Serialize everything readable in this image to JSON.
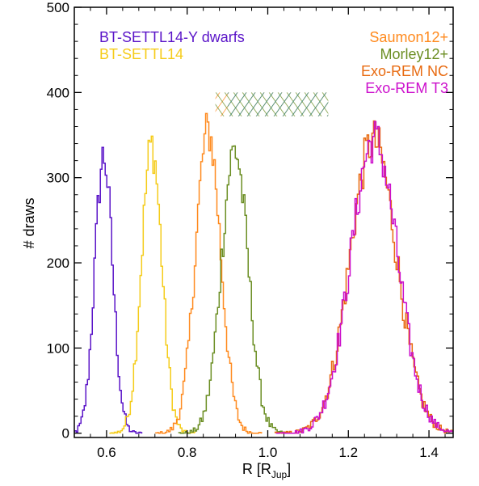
{
  "chart_data": {
    "type": "line",
    "title": "",
    "xlabel": "R [R",
    "xlabel_sub": "Jup",
    "xlabel_close": "]",
    "ylabel": "# draws",
    "xlim": [
      0.52,
      1.46
    ],
    "ylim": [
      -5,
      500
    ],
    "xticks": [
      0.6,
      0.8,
      1.0,
      1.2,
      1.4
    ],
    "xtick_labels": [
      "0.6",
      "0.8",
      "1.0",
      "1.2",
      "1.4"
    ],
    "yticks": [
      0,
      100,
      200,
      300,
      400,
      500
    ],
    "ytick_labels": [
      "0",
      "100",
      "200",
      "300",
      "400",
      "500"
    ],
    "grid": false,
    "series": [
      {
        "name": "BT-SETTL14-Y dwarfs",
        "color": "#5a14c8",
        "mean": 0.593,
        "sigma": 0.022,
        "peak": 325,
        "legend_pos": "top-left"
      },
      {
        "name": "BT-SETTL14",
        "color": "#f5cc1a",
        "mean": 0.712,
        "sigma": 0.025,
        "peak": 338,
        "legend_pos": "top-left"
      },
      {
        "name": "Saumon12+",
        "color": "#ff8a1e",
        "mean": 0.852,
        "sigma": 0.031,
        "peak": 355,
        "legend_pos": "top-right"
      },
      {
        "name": "Morley12+",
        "color": "#6b8e23",
        "mean": 0.918,
        "sigma": 0.033,
        "peak": 333,
        "legend_pos": "top-right"
      },
      {
        "name": "Exo-REM NC",
        "color": "#e86a10",
        "mean": 1.262,
        "sigma": 0.058,
        "peak": 343,
        "legend_pos": "top-right"
      },
      {
        "name": "Exo-REM T3",
        "color": "#cc10cc",
        "mean": 1.264,
        "sigma": 0.058,
        "peak": 345,
        "legend_pos": "top-right"
      }
    ],
    "hatched_bands": [
      {
        "name": "Saumon12+",
        "color": "#ff8a1e",
        "x0": 0.87,
        "x1": 1.15,
        "y0": 372,
        "y1": 400
      },
      {
        "name": "Morley12+",
        "color": "#6b8e23",
        "x0": 0.87,
        "x1": 1.15,
        "y0": 372,
        "y1": 400
      },
      {
        "name": "Exo-REM NC",
        "color": "#1a8a8a",
        "x0": 0.9,
        "x1": 1.15,
        "y0": 372,
        "y1": 400
      }
    ]
  }
}
